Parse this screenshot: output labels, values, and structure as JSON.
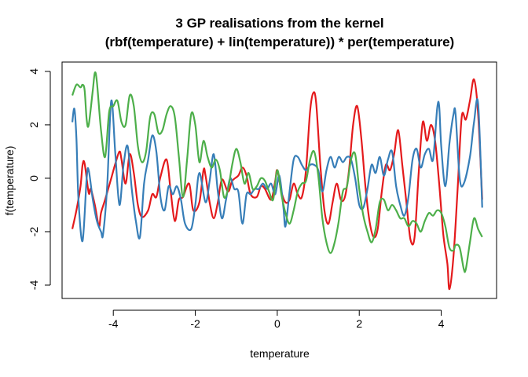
{
  "chart_data": {
    "type": "line",
    "title_line1": "3 GP realisations from the kernel",
    "title_line2": "(rbf(temperature) + lin(temperature)) * per(temperature)",
    "xlabel": "temperature",
    "ylabel": "f(temperature)",
    "xlim": [
      -5.25,
      5.35
    ],
    "ylim": [
      -4.5,
      4.35
    ],
    "xticks": [
      -4,
      -2,
      0,
      2,
      4
    ],
    "yticks": [
      -4,
      -2,
      0,
      2,
      4
    ],
    "grid": false,
    "legend": "none",
    "series": [
      {
        "color": "#E41A1C",
        "points": [
          [
            -5.0,
            -1.9
          ],
          [
            -4.9,
            -1.2
          ],
          [
            -4.8,
            -0.3
          ],
          [
            -4.75,
            0.5
          ],
          [
            -4.7,
            0.55
          ],
          [
            -4.6,
            -0.55
          ],
          [
            -4.55,
            -0.4
          ],
          [
            -4.45,
            -1.0
          ],
          [
            -4.35,
            -1.8
          ],
          [
            -4.3,
            -1.3
          ],
          [
            -4.2,
            -0.8
          ],
          [
            -4.05,
            0.0
          ],
          [
            -3.95,
            0.55
          ],
          [
            -3.85,
            1.0
          ],
          [
            -3.8,
            0.7
          ],
          [
            -3.7,
            -0.2
          ],
          [
            -3.6,
            0.9
          ],
          [
            -3.5,
            0.2
          ],
          [
            -3.4,
            -1.0
          ],
          [
            -3.3,
            -1.45
          ],
          [
            -3.15,
            -1.2
          ],
          [
            -3.05,
            -0.6
          ],
          [
            -2.95,
            -0.7
          ],
          [
            -2.85,
            0.05
          ],
          [
            -2.7,
            0.7
          ],
          [
            -2.6,
            -0.5
          ],
          [
            -2.5,
            -1.6
          ],
          [
            -2.4,
            -0.8
          ],
          [
            -2.3,
            -0.7
          ],
          [
            -2.15,
            -0.2
          ],
          [
            -2.05,
            -1.2
          ],
          [
            -1.9,
            -0.9
          ],
          [
            -1.8,
            0.3
          ],
          [
            -1.75,
            0.1
          ],
          [
            -1.65,
            -0.9
          ],
          [
            -1.55,
            -1.5
          ],
          [
            -1.45,
            -0.9
          ],
          [
            -1.35,
            -0.05
          ],
          [
            -1.2,
            -0.5
          ],
          [
            -1.1,
            -0.1
          ],
          [
            -0.95,
            0.1
          ],
          [
            -0.85,
            0.4
          ],
          [
            -0.75,
            0.1
          ],
          [
            -0.65,
            -0.6
          ],
          [
            -0.5,
            -0.7
          ],
          [
            -0.4,
            -0.3
          ],
          [
            -0.3,
            -0.4
          ],
          [
            -0.15,
            -0.8
          ],
          [
            -0.05,
            -0.1
          ],
          [
            0.0,
            0.3
          ],
          [
            0.1,
            -0.5
          ],
          [
            0.2,
            -0.9
          ],
          [
            0.3,
            -0.8
          ],
          [
            0.4,
            -0.2
          ],
          [
            0.5,
            -0.6
          ],
          [
            0.6,
            -0.7
          ],
          [
            0.7,
            0.3
          ],
          [
            0.8,
            2.5
          ],
          [
            0.88,
            3.2
          ],
          [
            0.95,
            2.8
          ],
          [
            1.05,
            0.5
          ],
          [
            1.15,
            -1.2
          ],
          [
            1.25,
            -1.7
          ],
          [
            1.35,
            -0.9
          ],
          [
            1.45,
            -0.2
          ],
          [
            1.55,
            -0.8
          ],
          [
            1.65,
            -0.7
          ],
          [
            1.75,
            0.3
          ],
          [
            1.85,
            2.0
          ],
          [
            1.95,
            2.7
          ],
          [
            2.05,
            1.5
          ],
          [
            2.15,
            -0.3
          ],
          [
            2.25,
            -1.6
          ],
          [
            2.35,
            -2.2
          ],
          [
            2.45,
            -1.9
          ],
          [
            2.55,
            -0.5
          ],
          [
            2.65,
            0.5
          ],
          [
            2.75,
            0.3
          ],
          [
            2.85,
            0.9
          ],
          [
            2.95,
            1.8
          ],
          [
            3.05,
            0.5
          ],
          [
            3.15,
            -0.9
          ],
          [
            3.25,
            -2.3
          ],
          [
            3.35,
            -2.2
          ],
          [
            3.45,
            0.2
          ],
          [
            3.55,
            2.1
          ],
          [
            3.65,
            1.4
          ],
          [
            3.75,
            2.0
          ],
          [
            3.85,
            1.4
          ],
          [
            3.95,
            -0.2
          ],
          [
            4.05,
            -2.1
          ],
          [
            4.15,
            -3.2
          ],
          [
            4.2,
            -4.15
          ],
          [
            4.3,
            -2.9
          ],
          [
            4.4,
            -0.4
          ],
          [
            4.5,
            2.3
          ],
          [
            4.6,
            2.2
          ],
          [
            4.7,
            2.9
          ],
          [
            4.8,
            3.7
          ],
          [
            4.9,
            2.4
          ],
          [
            5.0,
            -0.8
          ]
        ]
      },
      {
        "color": "#377EB8",
        "points": [
          [
            -5.0,
            2.1
          ],
          [
            -4.95,
            2.6
          ],
          [
            -4.9,
            1.5
          ],
          [
            -4.85,
            -0.8
          ],
          [
            -4.75,
            -2.35
          ],
          [
            -4.65,
            0.0
          ],
          [
            -4.6,
            0.3
          ],
          [
            -4.5,
            -0.8
          ],
          [
            -4.4,
            -1.6
          ],
          [
            -4.3,
            -2.0
          ],
          [
            -4.25,
            -2.1
          ],
          [
            -4.15,
            -0.3
          ],
          [
            -4.05,
            2.9
          ],
          [
            -3.95,
            0.9
          ],
          [
            -3.85,
            -1.0
          ],
          [
            -3.75,
            0.5
          ],
          [
            -3.65,
            1.2
          ],
          [
            -3.55,
            -0.4
          ],
          [
            -3.45,
            -1.6
          ],
          [
            -3.35,
            -2.2
          ],
          [
            -3.25,
            -0.2
          ],
          [
            -3.15,
            0.7
          ],
          [
            -3.05,
            1.6
          ],
          [
            -2.95,
            1.0
          ],
          [
            -2.85,
            -0.7
          ],
          [
            -2.75,
            -1.2
          ],
          [
            -2.65,
            -0.3
          ],
          [
            -2.55,
            -0.6
          ],
          [
            -2.45,
            -0.3
          ],
          [
            -2.35,
            -0.8
          ],
          [
            -2.25,
            -1.7
          ],
          [
            -2.1,
            -1.9
          ],
          [
            -2.0,
            -1.0
          ],
          [
            -1.9,
            0.2
          ],
          [
            -1.75,
            -0.9
          ],
          [
            -1.65,
            -0.1
          ],
          [
            -1.55,
            0.9
          ],
          [
            -1.45,
            -0.5
          ],
          [
            -1.35,
            -1.5
          ],
          [
            -1.25,
            -0.8
          ],
          [
            -1.15,
            0.0
          ],
          [
            -1.05,
            -0.4
          ],
          [
            -0.95,
            -0.5
          ],
          [
            -0.85,
            -1.7
          ],
          [
            -0.75,
            -0.6
          ],
          [
            -0.65,
            -0.6
          ],
          [
            -0.55,
            -0.4
          ],
          [
            -0.45,
            -0.4
          ],
          [
            -0.35,
            -0.2
          ],
          [
            -0.25,
            -0.4
          ],
          [
            -0.15,
            -0.2
          ],
          [
            -0.05,
            -0.6
          ],
          [
            0.05,
            0.1
          ],
          [
            0.15,
            -1.1
          ],
          [
            0.2,
            -1.8
          ],
          [
            0.3,
            -0.5
          ],
          [
            0.4,
            0.7
          ],
          [
            0.5,
            0.8
          ],
          [
            0.6,
            0.5
          ],
          [
            0.7,
            0.3
          ],
          [
            0.8,
            0.5
          ],
          [
            0.9,
            0.5
          ],
          [
            1.0,
            0.3
          ],
          [
            1.1,
            -0.5
          ],
          [
            1.2,
            0.3
          ],
          [
            1.3,
            0.8
          ],
          [
            1.4,
            0.4
          ],
          [
            1.5,
            0.8
          ],
          [
            1.6,
            0.6
          ],
          [
            1.7,
            0.8
          ],
          [
            1.8,
            0.7
          ],
          [
            1.9,
            0.0
          ],
          [
            2.0,
            -1.0
          ],
          [
            2.1,
            -1.1
          ],
          [
            2.2,
            -0.4
          ],
          [
            2.3,
            0.5
          ],
          [
            2.4,
            0.2
          ],
          [
            2.5,
            0.8
          ],
          [
            2.6,
            0.1
          ],
          [
            2.7,
            0.7
          ],
          [
            2.8,
            1.0
          ],
          [
            2.9,
            -0.3
          ],
          [
            3.0,
            -1.0
          ],
          [
            3.1,
            -1.4
          ],
          [
            3.2,
            -0.7
          ],
          [
            3.3,
            0.7
          ],
          [
            3.4,
            1.1
          ],
          [
            3.5,
            0.4
          ],
          [
            3.6,
            0.9
          ],
          [
            3.7,
            1.1
          ],
          [
            3.8,
            0.7
          ],
          [
            3.9,
            2.6
          ],
          [
            3.95,
            2.7
          ],
          [
            4.0,
            1.2
          ],
          [
            4.1,
            -0.3
          ],
          [
            4.2,
            1.3
          ],
          [
            4.3,
            2.4
          ],
          [
            4.35,
            2.4
          ],
          [
            4.45,
            0.0
          ],
          [
            4.55,
            -0.2
          ],
          [
            4.7,
            0.8
          ],
          [
            4.8,
            2.1
          ],
          [
            4.9,
            2.8
          ],
          [
            5.0,
            -1.1
          ]
        ]
      },
      {
        "color": "#4DAF4A",
        "points": [
          [
            -5.0,
            3.1
          ],
          [
            -4.9,
            3.5
          ],
          [
            -4.8,
            3.4
          ],
          [
            -4.75,
            3.5
          ],
          [
            -4.7,
            3.3
          ],
          [
            -4.65,
            2.2
          ],
          [
            -4.6,
            2.0
          ],
          [
            -4.5,
            3.3
          ],
          [
            -4.45,
            3.95
          ],
          [
            -4.4,
            3.6
          ],
          [
            -4.3,
            1.8
          ],
          [
            -4.2,
            0.8
          ],
          [
            -4.1,
            2.5
          ],
          [
            -4.0,
            2.7
          ],
          [
            -3.9,
            2.9
          ],
          [
            -3.8,
            2.1
          ],
          [
            -3.7,
            2.0
          ],
          [
            -3.6,
            3.1
          ],
          [
            -3.5,
            2.7
          ],
          [
            -3.4,
            1.2
          ],
          [
            -3.3,
            0.6
          ],
          [
            -3.2,
            1.0
          ],
          [
            -3.1,
            2.3
          ],
          [
            -3.0,
            2.4
          ],
          [
            -2.9,
            1.7
          ],
          [
            -2.8,
            1.8
          ],
          [
            -2.7,
            2.4
          ],
          [
            -2.6,
            2.7
          ],
          [
            -2.5,
            2.3
          ],
          [
            -2.4,
            0.8
          ],
          [
            -2.3,
            -0.7
          ],
          [
            -2.2,
            0.7
          ],
          [
            -2.1,
            2.4
          ],
          [
            -2.0,
            2.0
          ],
          [
            -1.9,
            0.6
          ],
          [
            -1.8,
            1.4
          ],
          [
            -1.7,
            0.8
          ],
          [
            -1.6,
            0.4
          ],
          [
            -1.5,
            0.7
          ],
          [
            -1.4,
            0.3
          ],
          [
            -1.3,
            -0.7
          ],
          [
            -1.2,
            -0.4
          ],
          [
            -1.1,
            0.5
          ],
          [
            -1.0,
            1.1
          ],
          [
            -0.9,
            0.6
          ],
          [
            -0.8,
            -0.2
          ],
          [
            -0.7,
            0.2
          ],
          [
            -0.6,
            -0.4
          ],
          [
            -0.5,
            -0.3
          ],
          [
            -0.4,
            0.0
          ],
          [
            -0.3,
            -0.1
          ],
          [
            -0.2,
            -0.5
          ],
          [
            -0.1,
            -0.8
          ],
          [
            0.0,
            0.3
          ],
          [
            0.1,
            -0.6
          ],
          [
            0.2,
            -1.3
          ],
          [
            0.3,
            -1.7
          ],
          [
            0.4,
            -1.2
          ],
          [
            0.5,
            -0.5
          ],
          [
            0.6,
            -0.2
          ],
          [
            0.7,
            -0.1
          ],
          [
            0.8,
            0.7
          ],
          [
            0.9,
            1.0
          ],
          [
            1.0,
            0.1
          ],
          [
            1.1,
            -1.5
          ],
          [
            1.2,
            -2.4
          ],
          [
            1.3,
            -2.8
          ],
          [
            1.4,
            -2.4
          ],
          [
            1.5,
            -1.6
          ],
          [
            1.6,
            -0.5
          ],
          [
            1.7,
            -0.3
          ],
          [
            1.8,
            0.7
          ],
          [
            1.9,
            0.9
          ],
          [
            2.0,
            -0.4
          ],
          [
            2.1,
            -1.4
          ],
          [
            2.2,
            -2.0
          ],
          [
            2.3,
            -2.4
          ],
          [
            2.4,
            -1.9
          ],
          [
            2.5,
            -0.9
          ],
          [
            2.6,
            -0.8
          ],
          [
            2.7,
            -1.2
          ],
          [
            2.8,
            -1.0
          ],
          [
            2.9,
            -1.2
          ],
          [
            3.0,
            -1.5
          ],
          [
            3.1,
            -1.5
          ],
          [
            3.2,
            -1.8
          ],
          [
            3.3,
            -1.6
          ],
          [
            3.4,
            -1.7
          ],
          [
            3.5,
            -2.0
          ],
          [
            3.6,
            -1.6
          ],
          [
            3.7,
            -1.3
          ],
          [
            3.8,
            -1.4
          ],
          [
            3.9,
            -1.2
          ],
          [
            4.0,
            -1.3
          ],
          [
            4.1,
            -1.8
          ],
          [
            4.2,
            -2.6
          ],
          [
            4.3,
            -2.7
          ],
          [
            4.35,
            -2.5
          ],
          [
            4.45,
            -2.6
          ],
          [
            4.55,
            -3.4
          ],
          [
            4.6,
            -3.4
          ],
          [
            4.7,
            -2.4
          ],
          [
            4.8,
            -1.5
          ],
          [
            4.9,
            -1.9
          ],
          [
            5.0,
            -2.2
          ]
        ]
      }
    ]
  }
}
